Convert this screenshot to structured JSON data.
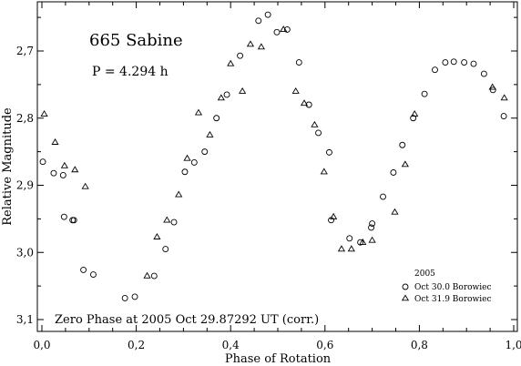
{
  "chart_data": {
    "type": "scatter",
    "title": "665 Sabine",
    "period_label": "P = 4.294 h",
    "annotation": "Zero Phase at 2005 Oct 29.87292 UT (corr.)",
    "xlabel": "Phase of Rotation",
    "ylabel": "Relative Magnitude",
    "xlim": [
      0.0,
      1.0
    ],
    "ylim": [
      3.1,
      2.635
    ],
    "y_inverted": true,
    "grid": false,
    "legend_position": "bottom-right",
    "legend_title": "2005",
    "x_ticks": [
      "0,0",
      "0,2",
      "0,4",
      "0,6",
      "0,8",
      "1,0"
    ],
    "x_tick_values": [
      0.0,
      0.2,
      0.4,
      0.6,
      0.8,
      1.0
    ],
    "y_ticks": [
      "2,7",
      "2,8",
      "2,9",
      "3,0",
      "3,1"
    ],
    "y_tick_values": [
      2.7,
      2.8,
      2.9,
      3.0,
      3.1
    ],
    "series": [
      {
        "name": "Oct 30.0 Borowiec",
        "marker": "circle",
        "x": [
          0.002,
          0.025,
          0.045,
          0.047,
          0.065,
          0.068,
          0.088,
          0.109,
          0.176,
          0.197,
          0.238,
          0.262,
          0.28,
          0.303,
          0.323,
          0.345,
          0.37,
          0.392,
          0.42,
          0.459,
          0.479,
          0.498,
          0.52,
          0.545,
          0.566,
          0.586,
          0.609,
          0.613,
          0.652,
          0.675,
          0.698,
          0.7,
          0.723,
          0.745,
          0.764,
          0.787,
          0.811,
          0.833,
          0.855,
          0.873,
          0.895,
          0.915,
          0.937,
          0.956,
          0.979
        ],
        "y": [
          2.865,
          2.882,
          2.885,
          2.947,
          2.952,
          2.952,
          3.026,
          3.033,
          3.068,
          3.066,
          3.035,
          2.995,
          2.955,
          2.88,
          2.866,
          2.85,
          2.8,
          2.765,
          2.707,
          2.655,
          2.646,
          2.672,
          2.668,
          2.717,
          2.78,
          2.822,
          2.851,
          2.952,
          2.979,
          2.985,
          2.963,
          2.957,
          2.917,
          2.881,
          2.84,
          2.8,
          2.764,
          2.728,
          2.717,
          2.716,
          2.717,
          2.719,
          2.734,
          2.758,
          2.797
        ]
      },
      {
        "name": "Oct 31.9 Borowiec",
        "marker": "triangle",
        "x": [
          0.005,
          0.028,
          0.048,
          0.07,
          0.092,
          0.223,
          0.244,
          0.265,
          0.29,
          0.308,
          0.332,
          0.356,
          0.38,
          0.4,
          0.425,
          0.442,
          0.465,
          0.512,
          0.538,
          0.556,
          0.578,
          0.598,
          0.618,
          0.635,
          0.656,
          0.68,
          0.7,
          0.748,
          0.77,
          0.79,
          0.955,
          0.98
        ],
        "y": [
          2.794,
          2.836,
          2.871,
          2.877,
          2.902,
          3.035,
          2.977,
          2.952,
          2.914,
          2.86,
          2.792,
          2.825,
          2.77,
          2.719,
          2.76,
          2.69,
          2.694,
          2.668,
          2.76,
          2.778,
          2.81,
          2.88,
          2.947,
          2.995,
          2.995,
          2.985,
          2.982,
          2.94,
          2.869,
          2.794,
          2.754,
          2.77
        ]
      }
    ]
  }
}
